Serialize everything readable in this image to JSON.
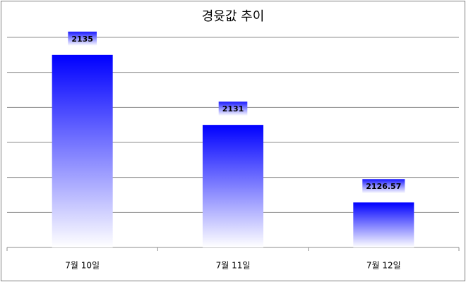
{
  "chart_data": {
    "type": "bar",
    "title": "경윳값 추이",
    "categories": [
      "7월 10일",
      "7월 11일",
      "7월 12일"
    ],
    "values": [
      2135,
      2131,
      2126.57
    ],
    "color": "#0000ff",
    "ylim": [
      2124,
      2136
    ],
    "yticks": [
      2124,
      2126,
      2128,
      2130,
      2132,
      2134,
      2136
    ],
    "grid": true
  }
}
